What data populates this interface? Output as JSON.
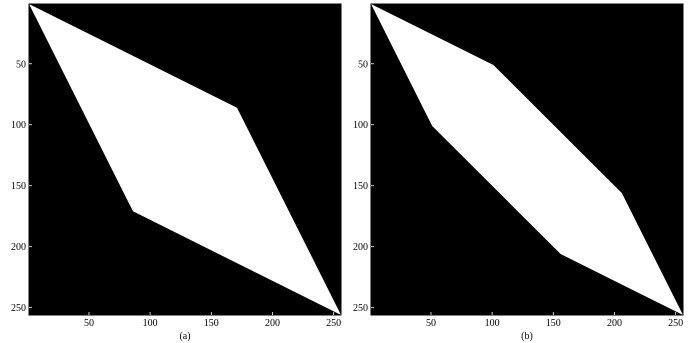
{
  "chart_data": [
    {
      "type": "heatmap",
      "panel_label": "(a)",
      "title": "",
      "xlabel": "",
      "ylabel": "",
      "xlim": [
        1,
        256
      ],
      "ylim": [
        1,
        256
      ],
      "y_axis_direction": "top-to-bottom",
      "x_ticks": [
        "50",
        "100",
        "150",
        "200",
        "250"
      ],
      "y_ticks": [
        "50",
        "100",
        "150",
        "200",
        "250"
      ],
      "background_value": 0,
      "region_value": 1,
      "colors": {
        "background": "#000000",
        "region": "#ffffff"
      },
      "white_region_vertices": [
        [
          1,
          1
        ],
        [
          171,
          86
        ],
        [
          256,
          256
        ],
        [
          86,
          171
        ]
      ]
    },
    {
      "type": "heatmap",
      "panel_label": "(b)",
      "title": "",
      "xlabel": "",
      "ylabel": "",
      "xlim": [
        1,
        256
      ],
      "ylim": [
        1,
        256
      ],
      "y_axis_direction": "top-to-bottom",
      "x_ticks": [
        "50",
        "100",
        "150",
        "200",
        "250"
      ],
      "y_ticks": [
        "50",
        "100",
        "150",
        "200",
        "250"
      ],
      "background_value": 0,
      "region_value": 1,
      "colors": {
        "background": "#000000",
        "region": "#ffffff"
      },
      "white_region_vertices": [
        [
          1,
          1
        ],
        [
          101,
          51
        ],
        [
          206,
          156
        ],
        [
          256,
          256
        ],
        [
          156,
          206
        ],
        [
          51,
          101
        ]
      ]
    }
  ]
}
